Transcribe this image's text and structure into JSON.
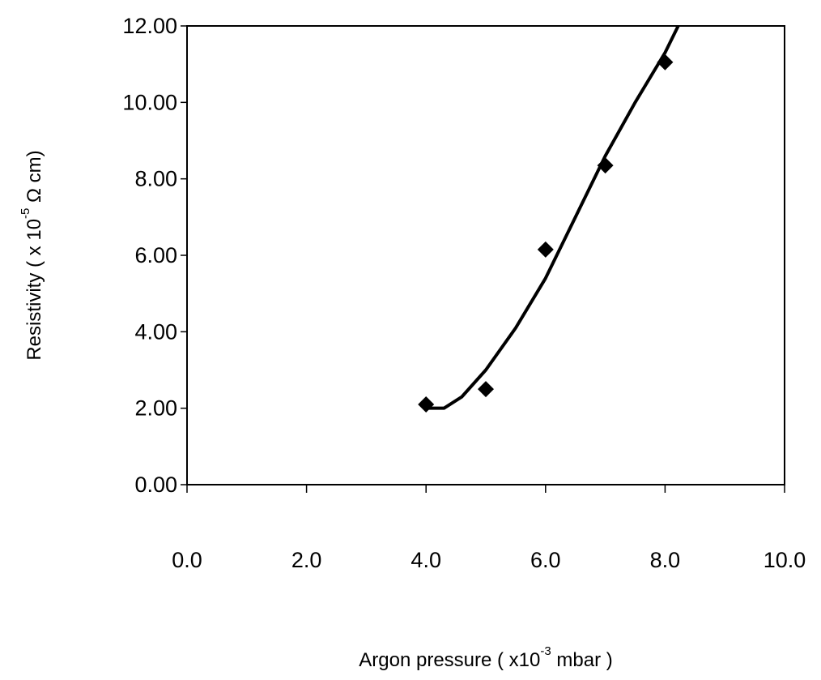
{
  "chart_data": {
    "type": "scatter",
    "xlabel": {
      "text": "Argon pressure ( x10",
      "sup": "-3",
      "after": " mbar )"
    },
    "ylabel": {
      "text": "Resistivity ( x   10",
      "sup": "-5",
      "after": " Ω cm)"
    },
    "xlim": [
      0,
      10
    ],
    "xticks": [
      {
        "value": 0,
        "label": "0.0"
      },
      {
        "value": 2,
        "label": "2.0"
      },
      {
        "value": 4,
        "label": "4.0"
      },
      {
        "value": 6,
        "label": "6.0"
      },
      {
        "value": 8,
        "label": "8.0"
      },
      {
        "value": 10,
        "label": "10.0"
      }
    ],
    "ylim": [
      0,
      12
    ],
    "yticks": [
      {
        "value": 0,
        "label": "0.00"
      },
      {
        "value": 2,
        "label": "2.00"
      },
      {
        "value": 4,
        "label": "4.00"
      },
      {
        "value": 6,
        "label": "6.00"
      },
      {
        "value": 8,
        "label": "8.00"
      },
      {
        "value": 10,
        "label": "10.00"
      },
      {
        "value": 12,
        "label": "12.00"
      }
    ],
    "series": [
      {
        "mode": "markers",
        "color": "#000000",
        "x": [
          4,
          5,
          6,
          7,
          8
        ],
        "values": [
          2.1,
          2.5,
          6.15,
          8.35,
          11.05
        ]
      },
      {
        "mode": "line",
        "color": "#000000",
        "x": [
          4,
          4.3,
          4.6,
          5,
          5.5,
          6,
          6.5,
          7,
          7.5,
          8,
          8.22
        ],
        "values": [
          2.0,
          2.0,
          2.3,
          3.0,
          4.1,
          5.4,
          7.0,
          8.6,
          10.0,
          11.3,
          12.0
        ]
      }
    ]
  }
}
